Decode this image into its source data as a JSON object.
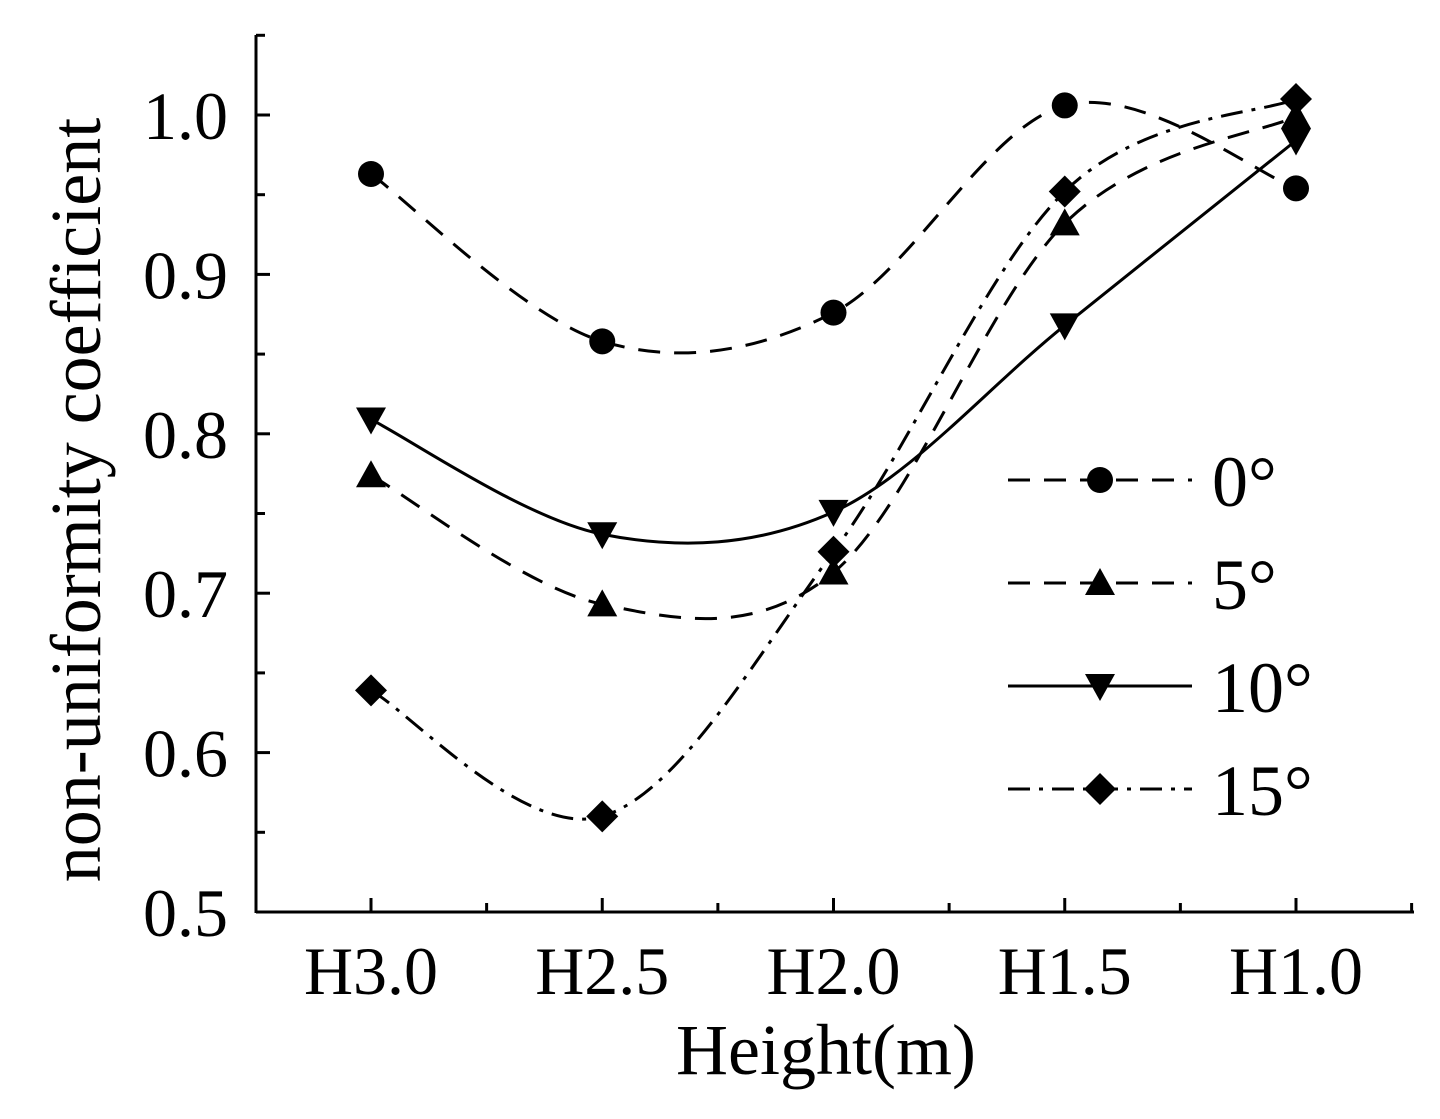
{
  "chart_data": {
    "type": "line",
    "title": "",
    "xlabel": "Height(m)",
    "ylabel": "non-uniformity coefficient",
    "categories": [
      "H3.0",
      "H2.5",
      "H2.0",
      "H1.5",
      "H1.0"
    ],
    "ylim": [
      0.5,
      1.05
    ],
    "yticks": [
      "0.5",
      "0.6",
      "0.7",
      "0.8",
      "0.9",
      "1.0"
    ],
    "ytick_values": [
      0.5,
      0.6,
      0.7,
      0.8,
      0.9,
      1.0
    ],
    "series": [
      {
        "name": "0°",
        "marker": "circle",
        "line_style": "dashed",
        "values": [
          0.963,
          0.858,
          0.876,
          1.006,
          0.954
        ]
      },
      {
        "name": "5°",
        "marker": "triangle-up",
        "line_style": "dashed",
        "values": [
          0.774,
          0.693,
          0.713,
          0.932,
          0.999
        ]
      },
      {
        "name": "10°",
        "marker": "triangle-down",
        "line_style": "solid",
        "values": [
          0.809,
          0.737,
          0.751,
          0.868,
          0.984
        ]
      },
      {
        "name": "15°",
        "marker": "diamond",
        "line_style": "dash-dot",
        "values": [
          0.639,
          0.56,
          0.726,
          0.952,
          1.01
        ]
      }
    ],
    "legend_position": "right",
    "grid": false
  }
}
